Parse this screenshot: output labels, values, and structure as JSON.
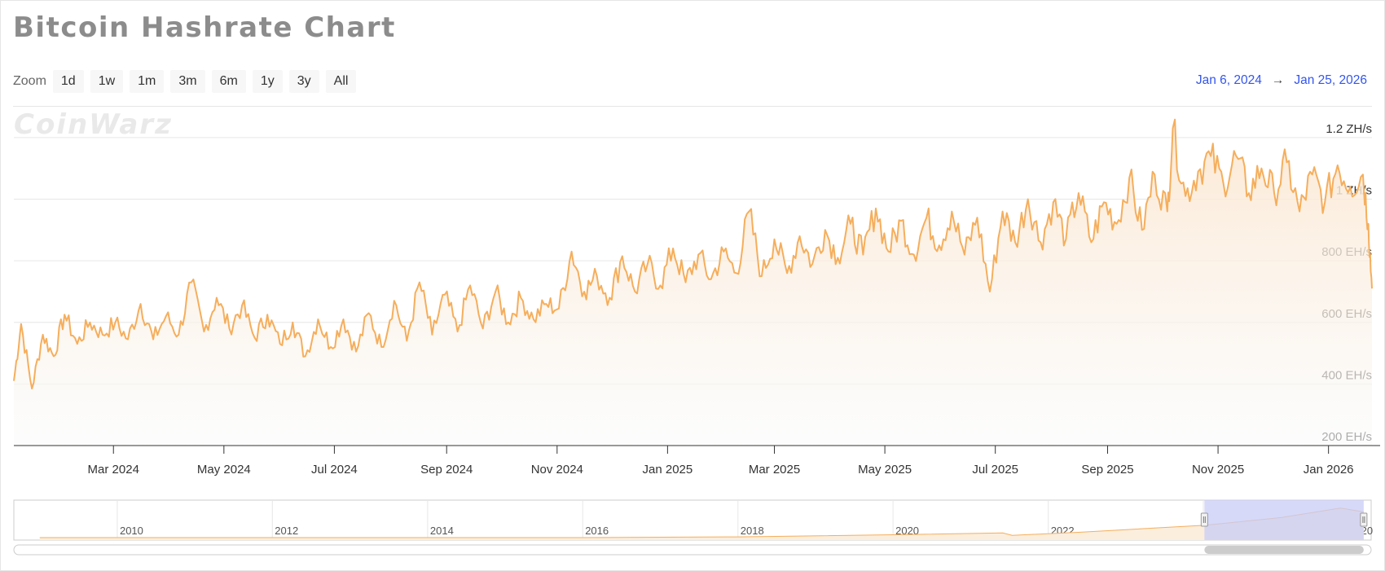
{
  "page": {
    "title": "Bitcoin Hashrate Chart",
    "zoom_label": "Zoom",
    "zoom_buttons": [
      "1d",
      "1w",
      "1m",
      "3m",
      "6m",
      "1y",
      "3y",
      "All"
    ],
    "range_from": "Jan 6, 2024",
    "range_arrow": "→",
    "range_to": "Jan 25, 2026",
    "watermark": "COINWARZ"
  },
  "colors": {
    "series": "#f5ae5c",
    "grid": "#e6e6e6",
    "nav_selection": "#c8ccf6",
    "axis": "#333333"
  },
  "chart_data": {
    "type": "area",
    "title": "Bitcoin Hashrate Chart",
    "xlabel": "",
    "ylabel": "",
    "x_range": [
      "2024-01-06",
      "2026-01-25"
    ],
    "ylim": [
      200,
      1250
    ],
    "y_unit": "EH/s",
    "y_ticks": [
      {
        "value": 200,
        "label": "200 EH/s"
      },
      {
        "value": 400,
        "label": "400 EH/s"
      },
      {
        "value": 600,
        "label": "600 EH/s"
      },
      {
        "value": 800,
        "label": "800 EH/s"
      },
      {
        "value": 1000,
        "label": "1 ZH/s"
      },
      {
        "value": 1200,
        "label": "1.2 ZH/s"
      }
    ],
    "x_ticks": [
      {
        "date": "2024-03-01",
        "label": "Mar 2024"
      },
      {
        "date": "2024-05-01",
        "label": "May 2024"
      },
      {
        "date": "2024-07-01",
        "label": "Jul 2024"
      },
      {
        "date": "2024-09-01",
        "label": "Sep 2024"
      },
      {
        "date": "2024-11-01",
        "label": "Nov 2024"
      },
      {
        "date": "2025-01-01",
        "label": "Jan 2025"
      },
      {
        "date": "2025-03-01",
        "label": "Mar 2025"
      },
      {
        "date": "2025-05-01",
        "label": "May 2025"
      },
      {
        "date": "2025-07-01",
        "label": "Jul 2025"
      },
      {
        "date": "2025-09-01",
        "label": "Sep 2025"
      },
      {
        "date": "2025-11-01",
        "label": "Nov 2025"
      },
      {
        "date": "2026-01-01",
        "label": "Jan 2026"
      }
    ],
    "grid": true,
    "legend": "none",
    "series": [
      {
        "values": [
          [
            "2024-01-06",
            410
          ],
          [
            "2024-01-10",
            595
          ],
          [
            "2024-01-16",
            385
          ],
          [
            "2024-01-22",
            560
          ],
          [
            "2024-01-28",
            490
          ],
          [
            "2024-02-03",
            625
          ],
          [
            "2024-02-10",
            530
          ],
          [
            "2024-02-17",
            600
          ],
          [
            "2024-02-24",
            560
          ],
          [
            "2024-03-02",
            600
          ],
          [
            "2024-03-09",
            545
          ],
          [
            "2024-03-16",
            660
          ],
          [
            "2024-03-23",
            545
          ],
          [
            "2024-03-30",
            620
          ],
          [
            "2024-04-06",
            560
          ],
          [
            "2024-04-13",
            730
          ],
          [
            "2024-04-20",
            570
          ],
          [
            "2024-04-27",
            680
          ],
          [
            "2024-05-04",
            580
          ],
          [
            "2024-05-11",
            655
          ],
          [
            "2024-05-18",
            550
          ],
          [
            "2024-05-25",
            625
          ],
          [
            "2024-06-01",
            530
          ],
          [
            "2024-06-08",
            600
          ],
          [
            "2024-06-15",
            490
          ],
          [
            "2024-06-22",
            610
          ],
          [
            "2024-06-29",
            520
          ],
          [
            "2024-07-06",
            610
          ],
          [
            "2024-07-13",
            505
          ],
          [
            "2024-07-20",
            630
          ],
          [
            "2024-07-27",
            520
          ],
          [
            "2024-08-03",
            670
          ],
          [
            "2024-08-10",
            540
          ],
          [
            "2024-08-17",
            730
          ],
          [
            "2024-08-24",
            560
          ],
          [
            "2024-08-31",
            690
          ],
          [
            "2024-09-07",
            570
          ],
          [
            "2024-09-14",
            720
          ],
          [
            "2024-09-21",
            580
          ],
          [
            "2024-09-28",
            700
          ],
          [
            "2024-10-05",
            600
          ],
          [
            "2024-10-12",
            680
          ],
          [
            "2024-10-19",
            610
          ],
          [
            "2024-10-26",
            660
          ],
          [
            "2024-11-02",
            645
          ],
          [
            "2024-11-09",
            830
          ],
          [
            "2024-11-16",
            700
          ],
          [
            "2024-11-23",
            750
          ],
          [
            "2024-11-30",
            680
          ],
          [
            "2024-12-07",
            815
          ],
          [
            "2024-12-14",
            700
          ],
          [
            "2024-12-21",
            790
          ],
          [
            "2024-12-28",
            720
          ],
          [
            "2025-01-04",
            840
          ],
          [
            "2025-01-11",
            730
          ],
          [
            "2025-01-18",
            820
          ],
          [
            "2025-01-25",
            740
          ],
          [
            "2025-02-01",
            830
          ],
          [
            "2025-02-08",
            760
          ],
          [
            "2025-02-15",
            960
          ],
          [
            "2025-02-22",
            750
          ],
          [
            "2025-03-01",
            870
          ],
          [
            "2025-03-08",
            760
          ],
          [
            "2025-03-15",
            880
          ],
          [
            "2025-03-22",
            790
          ],
          [
            "2025-03-29",
            900
          ],
          [
            "2025-04-05",
            810
          ],
          [
            "2025-04-12",
            920
          ],
          [
            "2025-04-19",
            820
          ],
          [
            "2025-04-26",
            970
          ],
          [
            "2025-05-03",
            830
          ],
          [
            "2025-05-10",
            930
          ],
          [
            "2025-05-17",
            820
          ],
          [
            "2025-05-24",
            940
          ],
          [
            "2025-05-31",
            850
          ],
          [
            "2025-06-07",
            960
          ],
          [
            "2025-06-14",
            820
          ],
          [
            "2025-06-21",
            940
          ],
          [
            "2025-06-28",
            700
          ],
          [
            "2025-07-05",
            960
          ],
          [
            "2025-07-12",
            860
          ],
          [
            "2025-07-19",
            1000
          ],
          [
            "2025-07-26",
            860
          ],
          [
            "2025-08-02",
            990
          ],
          [
            "2025-08-09",
            870
          ],
          [
            "2025-08-16",
            1020
          ],
          [
            "2025-08-23",
            860
          ],
          [
            "2025-08-30",
            990
          ],
          [
            "2025-09-06",
            920
          ],
          [
            "2025-09-13",
            1070
          ],
          [
            "2025-09-20",
            900
          ],
          [
            "2025-09-27",
            1080
          ],
          [
            "2025-10-04",
            960
          ],
          [
            "2025-10-07",
            1230
          ],
          [
            "2025-10-14",
            1010
          ],
          [
            "2025-10-21",
            1090
          ],
          [
            "2025-10-28",
            1140
          ],
          [
            "2025-11-04",
            1050
          ],
          [
            "2025-11-11",
            1140
          ],
          [
            "2025-11-18",
            1020
          ],
          [
            "2025-11-25",
            1100
          ],
          [
            "2025-12-02",
            1020
          ],
          [
            "2025-12-09",
            1120
          ],
          [
            "2025-12-16",
            960
          ],
          [
            "2025-12-23",
            1080
          ],
          [
            "2025-12-30",
            990
          ],
          [
            "2026-01-06",
            1110
          ],
          [
            "2026-01-13",
            1040
          ],
          [
            "2026-01-20",
            1080
          ],
          [
            "2026-01-23",
            920
          ],
          [
            "2026-01-25",
            710
          ]
        ]
      }
    ],
    "navigator": {
      "x_range": [
        "2008-09-01",
        "2026-03-01"
      ],
      "tick_labels": [
        "2010",
        "2012",
        "2014",
        "2016",
        "2018",
        "2020",
        "2022",
        "2024",
        "20"
      ],
      "selected_range": [
        "2024-01-06",
        "2026-01-25"
      ]
    }
  }
}
